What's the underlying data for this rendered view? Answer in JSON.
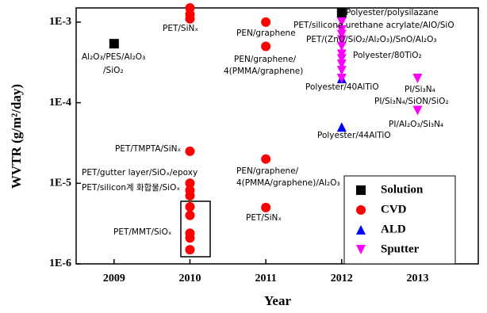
{
  "chart_data": {
    "type": "scatter",
    "x_label": "Year",
    "y_label": "WVTR (g/m²/day)",
    "log_y": true,
    "legend": "lower right",
    "xlim": [
      2008.5,
      2013.8
    ],
    "xticks": [
      2009,
      2010,
      2011,
      2012,
      2013
    ],
    "ylim": [
      1e-06,
      0.0015
    ],
    "yticks": [
      {
        "value": 1e-06,
        "label": "1E-6"
      },
      {
        "value": 1e-05,
        "label": "1E-5"
      },
      {
        "value": 0.0001,
        "label": "1E-4"
      },
      {
        "value": 0.001,
        "label": "1E-3"
      }
    ],
    "series": [
      {
        "name": "Solution",
        "color": "#000000",
        "marker": "square",
        "x": [
          2009,
          2012
        ],
        "values": [
          0.00054,
          0.0013
        ]
      },
      {
        "name": "CVD",
        "color": "#ff0000",
        "marker": "circle",
        "x": [
          2010,
          2010,
          2010,
          2010,
          2010,
          2010,
          2010,
          2010,
          2010,
          2010,
          2010,
          2010,
          2011,
          2011,
          2011,
          2011
        ],
        "values": [
          0.0015,
          0.00125,
          0.0011,
          2.5e-05,
          1e-05,
          8.2e-06,
          7e-06,
          5.1e-06,
          4e-06,
          2.4e-06,
          2.1e-06,
          1.5e-06,
          0.001,
          0.0005,
          2e-05,
          5e-06
        ]
      },
      {
        "name": "ALD",
        "color": "#0000ff",
        "marker": "triangle-up",
        "x": [
          2012,
          2012
        ],
        "values": [
          0.0002,
          5e-05
        ]
      },
      {
        "name": "Sputter",
        "color": "#ff00ff",
        "marker": "triangle-down",
        "x": [
          2012,
          2012,
          2012,
          2012,
          2012,
          2012,
          2012,
          2012,
          2012,
          2012,
          2013,
          2013
        ],
        "values": [
          0.001,
          0.0008,
          0.0007,
          0.0006,
          0.0005,
          0.0004,
          0.00035,
          0.0003,
          0.00025,
          0.0002,
          0.0002,
          8e-05
        ]
      }
    ],
    "annotations": [
      "Al₂O₃/PES/Al₂O₃",
      "/SiO₂",
      "PET/SiNₓ",
      "PEN/graphene",
      "PEN/graphene/",
      "4(PMMA/graphene)",
      "Polyester/polysilazane",
      "PET/silicone urethane acrylate/AlO/SiO",
      "PET/(ZnO/SiO₂/Al₂O₃)/SnO/Al₂O₃",
      "Polyester/80TiO₂",
      "Polyester/40AlTiO",
      "PI/Si₃N₄",
      "PI/Si₃N₄/SiON/SiO₂",
      "PI/Al₂O₃/Si₃N₄",
      "Polyester/44AlTiO",
      "PET/TMPTA/SiNₓ",
      "PET/gutter layer/SiOₓ/epoxy",
      "PET/silicon계 화합물/SiOₓ",
      "PEN/graphene/",
      "4(PMMA/graphene)/Al₂O₃",
      "PET/MMT/SiOₓ",
      "PET/SiNₓ"
    ]
  }
}
